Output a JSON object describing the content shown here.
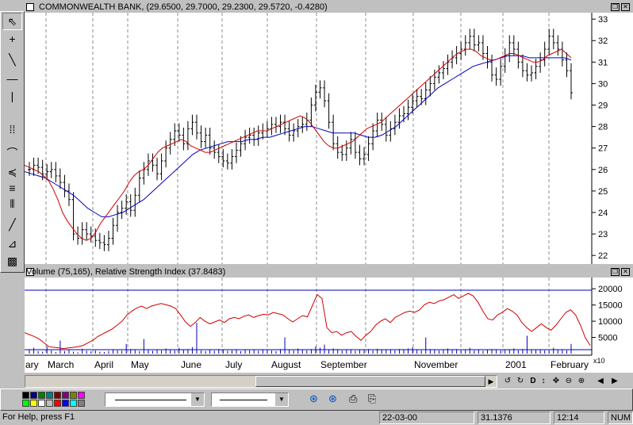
{
  "window": {
    "price_title": "COMMONWEALTH BANK, (29.6500, 29.7000, 29.2300, 29.5720, -0.4280)",
    "indicator_title": "Volume (75,165), Relative Strength Index (37.8483)"
  },
  "toolbar_tools": [
    {
      "name": "pointer-tool",
      "glyph": "⇖"
    },
    {
      "name": "crosshair-tool",
      "glyph": "+"
    },
    {
      "name": "trendline-tool",
      "glyph": "╲"
    },
    {
      "name": "horizontal-line-tool",
      "glyph": "—"
    },
    {
      "name": "vertical-line-tool",
      "glyph": "|"
    },
    {
      "name": "cycle-tool",
      "glyph": "⁞⁞"
    },
    {
      "name": "arc-tool",
      "glyph": "⌒"
    },
    {
      "name": "fan-tool",
      "glyph": "≼"
    },
    {
      "name": "retracement-tool",
      "glyph": "≡"
    },
    {
      "name": "time-zones-tool",
      "glyph": "⦀"
    },
    {
      "name": "line-tool",
      "glyph": "╱"
    },
    {
      "name": "speed-lines-tool",
      "glyph": "⊿"
    },
    {
      "name": "grid-tool",
      "glyph": "▩"
    }
  ],
  "price_axis": {
    "labels": [
      "33",
      "32",
      "31",
      "30",
      "29",
      "28",
      "27",
      "26",
      "25",
      "24",
      "23",
      "22"
    ]
  },
  "volume_axis": {
    "labels": [
      "20000",
      "15000",
      "10000",
      "5000"
    ],
    "scale": "x10"
  },
  "months": [
    "ary",
    "March",
    "April",
    "May",
    "June",
    "July",
    "August",
    "September",
    "November",
    "2001",
    "February"
  ],
  "status": {
    "help": "For Help, press F1",
    "date": "22-03-00",
    "value": "31.1376",
    "time": "12:14",
    "mode": "NUM"
  },
  "palette": [
    "#000000",
    "#000080",
    "#008000",
    "#008080",
    "#800000",
    "#800080",
    "#808000",
    "#ff00ff",
    "#00ff00",
    "#ffff00",
    "#ffffff",
    "#c0c0c0",
    "#ff0000",
    "#0000ff",
    "#00ffff",
    "#808080"
  ],
  "chart_data": {
    "type": "line",
    "title": "COMMONWEALTH BANK, (29.6500, 29.7000, 29.2300, 29.5720, -0.4280)",
    "ylim": [
      21.6,
      33.3
    ],
    "close": [
      26.0,
      26.2,
      26.1,
      25.8,
      25.9,
      26.0,
      25.7,
      25.4,
      25.0,
      24.6,
      23.0,
      22.8,
      23.2,
      23.0,
      22.9,
      22.7,
      22.6,
      22.5,
      22.8,
      23.4,
      24.0,
      24.2,
      24.5,
      24.1,
      24.8,
      25.6,
      26.0,
      26.4,
      26.2,
      25.8,
      26.4,
      27.0,
      27.4,
      27.8,
      27.6,
      27.2,
      27.9,
      28.2,
      27.7,
      27.3,
      27.6,
      27.0,
      26.8,
      26.6,
      26.4,
      26.3,
      26.6,
      26.9,
      27.2,
      27.5,
      27.6,
      27.4,
      27.7,
      27.8,
      27.9,
      28.1,
      28.0,
      28.2,
      27.9,
      27.6,
      27.8,
      28.0,
      28.1,
      28.3,
      29.0,
      29.6,
      29.8,
      29.2,
      28.2,
      27.2,
      26.8,
      26.7,
      27.0,
      27.4,
      26.8,
      26.5,
      26.7,
      27.2,
      27.8,
      28.3,
      28.1,
      27.6,
      27.9,
      28.2,
      28.5,
      28.6,
      28.9,
      29.2,
      29.4,
      29.3,
      29.7,
      30.0,
      30.3,
      30.5,
      30.7,
      31.0,
      31.2,
      31.4,
      31.6,
      31.9,
      32.2,
      31.8,
      31.9,
      31.4,
      31.0,
      30.4,
      30.2,
      30.8,
      31.3,
      31.9,
      31.6,
      31.0,
      30.6,
      30.4,
      30.5,
      30.8,
      31.1,
      31.6,
      32.2,
      31.9,
      31.6,
      31.1,
      30.6,
      29.57
    ],
    "ma_short": [
      26.2,
      26.1,
      26.0,
      25.9,
      25.7,
      25.5,
      25.1,
      24.6,
      24.0,
      23.6,
      23.3,
      23.0,
      22.8,
      22.7,
      22.8,
      23.1,
      23.5,
      23.8,
      24.1,
      24.4,
      24.7,
      25.0,
      25.4,
      25.7,
      25.9,
      26.0,
      26.2,
      26.5,
      26.8,
      27.0,
      27.1,
      27.2,
      27.3,
      27.4,
      27.3,
      27.1,
      27.0,
      26.9,
      26.8,
      26.8,
      26.9,
      27.0,
      27.1,
      27.2,
      27.3,
      27.4,
      27.5,
      27.6,
      27.7,
      27.8,
      27.8,
      27.8,
      27.9,
      28.0,
      28.1,
      28.2,
      28.3,
      28.4,
      28.5,
      28.4,
      28.2,
      27.9,
      27.6,
      27.3,
      27.1,
      27.0,
      27.0,
      27.1,
      27.2,
      27.3,
      27.5,
      27.7,
      27.9,
      28.0,
      28.1,
      28.2,
      28.4,
      28.6,
      28.8,
      29.0,
      29.2,
      29.4,
      29.6,
      29.8,
      30.0,
      30.2,
      30.4,
      30.6,
      30.8,
      31.0,
      31.2,
      31.4,
      31.5,
      31.6,
      31.6,
      31.5,
      31.3,
      31.2,
      31.1,
      31.1,
      31.2,
      31.3,
      31.4,
      31.4,
      31.3,
      31.2,
      31.1,
      31.0,
      31.0,
      31.1,
      31.3,
      31.4,
      31.5,
      31.6,
      31.4,
      31.2
    ],
    "ma_long": [
      25.9,
      25.8,
      25.7,
      25.6,
      25.4,
      25.2,
      25.0,
      24.8,
      24.5,
      24.2,
      24.0,
      23.8,
      23.8,
      23.9,
      24.0,
      24.2,
      24.4,
      24.6,
      24.9,
      25.2,
      25.5,
      25.8,
      26.1,
      26.4,
      26.7,
      26.9,
      27.0,
      27.1,
      27.2,
      27.3,
      27.3,
      27.3,
      27.4,
      27.4,
      27.5,
      27.5,
      27.6,
      27.7,
      27.8,
      27.9,
      28.0,
      28.0,
      27.9,
      27.8,
      27.7,
      27.7,
      27.7,
      27.7,
      27.6,
      27.5,
      27.5,
      27.6,
      27.8,
      28.0,
      28.3,
      28.6,
      28.9,
      29.2,
      29.5,
      29.8,
      30.0,
      30.2,
      30.4,
      30.6,
      30.8,
      30.9,
      31.0,
      31.1,
      31.2,
      31.3,
      31.3,
      31.3,
      31.2,
      31.2,
      31.2,
      31.2,
      31.2,
      31.2,
      31.1
    ],
    "rsi": [
      0.28,
      0.25,
      0.22,
      0.18,
      0.12,
      0.06,
      0.05,
      0.04,
      0.03,
      0.04,
      0.05,
      0.06,
      0.08,
      0.12,
      0.16,
      0.22,
      0.26,
      0.3,
      0.34,
      0.4,
      0.46,
      0.56,
      0.62,
      0.67,
      0.7,
      0.66,
      0.7,
      0.72,
      0.74,
      0.72,
      0.7,
      0.66,
      0.56,
      0.45,
      0.38,
      0.44,
      0.52,
      0.46,
      0.42,
      0.45,
      0.48,
      0.44,
      0.5,
      0.52,
      0.5,
      0.54,
      0.56,
      0.52,
      0.55,
      0.57,
      0.56,
      0.6,
      0.58,
      0.56,
      0.5,
      0.45,
      0.5,
      0.55,
      0.53,
      0.7,
      0.88,
      0.82,
      0.36,
      0.28,
      0.3,
      0.24,
      0.28,
      0.3,
      0.22,
      0.16,
      0.24,
      0.3,
      0.4,
      0.46,
      0.5,
      0.44,
      0.52,
      0.56,
      0.6,
      0.62,
      0.6,
      0.64,
      0.72,
      0.76,
      0.74,
      0.78,
      0.8,
      0.84,
      0.88,
      0.82,
      0.86,
      0.9,
      0.86,
      0.76,
      0.62,
      0.5,
      0.48,
      0.56,
      0.6,
      0.66,
      0.62,
      0.56,
      0.44,
      0.36,
      0.3,
      0.36,
      0.42,
      0.36,
      0.32,
      0.4,
      0.5,
      0.6,
      0.64,
      0.56,
      0.4,
      0.2,
      0.08
    ],
    "volume": [
      12,
      18,
      8,
      6,
      22,
      10,
      5,
      40,
      8,
      12,
      6,
      4,
      15,
      9,
      7,
      10,
      6,
      5,
      8,
      12,
      10,
      9,
      30,
      14,
      11,
      8,
      45,
      12,
      9,
      13,
      10,
      16,
      11,
      10,
      18,
      12,
      14,
      20,
      95,
      10,
      8,
      12,
      9,
      14,
      11,
      9,
      10,
      12,
      8,
      11,
      10,
      13,
      9,
      12,
      11,
      10,
      8,
      14,
      50,
      12,
      10,
      16,
      12,
      10,
      14,
      22,
      18,
      28,
      12,
      16,
      14,
      10,
      12,
      11,
      9,
      13,
      12,
      14,
      10,
      15,
      11,
      13,
      12,
      10,
      14,
      12,
      16,
      20,
      12,
      10,
      50,
      14,
      12,
      10,
      13,
      16,
      11,
      14,
      10,
      12,
      18,
      10,
      13,
      9,
      12,
      14,
      11,
      10,
      13,
      12,
      16,
      10,
      14,
      55,
      12,
      11,
      13,
      10,
      9,
      18,
      11,
      12,
      10,
      30
    ]
  }
}
